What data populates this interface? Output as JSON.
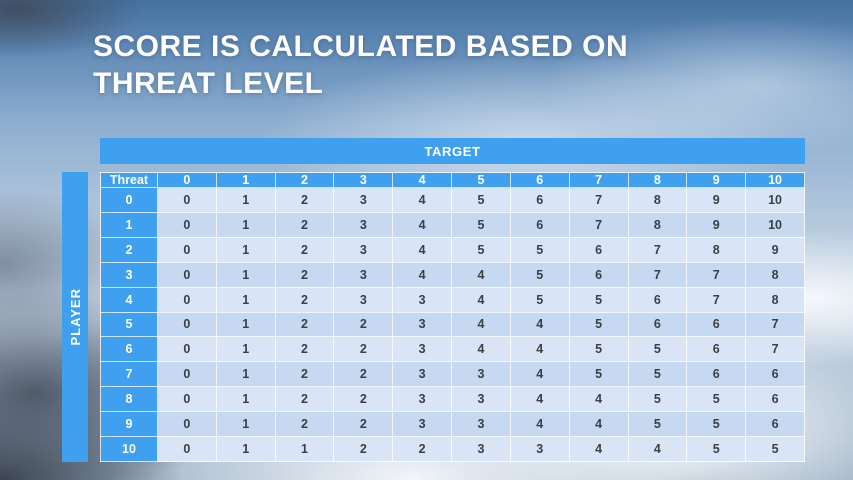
{
  "slide": {
    "title": "SCORE IS CALCULATED BASED ON\nTHREAT LEVEL"
  },
  "table": {
    "target_label": "TARGET",
    "player_label": "PLAYER",
    "corner_label": "Threat",
    "column_headers": [
      "0",
      "1",
      "2",
      "3",
      "4",
      "5",
      "6",
      "7",
      "8",
      "9",
      "10"
    ],
    "rows": [
      {
        "label": "0",
        "values": [
          0,
          1,
          2,
          3,
          4,
          5,
          6,
          7,
          8,
          9,
          10
        ]
      },
      {
        "label": "1",
        "values": [
          0,
          1,
          2,
          3,
          4,
          5,
          6,
          7,
          8,
          9,
          10
        ]
      },
      {
        "label": "2",
        "values": [
          0,
          1,
          2,
          3,
          4,
          5,
          5,
          6,
          7,
          8,
          9
        ]
      },
      {
        "label": "3",
        "values": [
          0,
          1,
          2,
          3,
          4,
          4,
          5,
          6,
          7,
          7,
          8
        ]
      },
      {
        "label": "4",
        "values": [
          0,
          1,
          2,
          3,
          3,
          4,
          5,
          5,
          6,
          7,
          8
        ]
      },
      {
        "label": "5",
        "values": [
          0,
          1,
          2,
          2,
          3,
          4,
          4,
          5,
          6,
          6,
          7
        ]
      },
      {
        "label": "6",
        "values": [
          0,
          1,
          2,
          2,
          3,
          4,
          4,
          5,
          5,
          6,
          7
        ]
      },
      {
        "label": "7",
        "values": [
          0,
          1,
          2,
          2,
          3,
          3,
          4,
          5,
          5,
          6,
          6
        ]
      },
      {
        "label": "8",
        "values": [
          0,
          1,
          2,
          2,
          3,
          3,
          4,
          4,
          5,
          5,
          6
        ]
      },
      {
        "label": "9",
        "values": [
          0,
          1,
          2,
          2,
          3,
          3,
          4,
          4,
          5,
          5,
          6
        ]
      },
      {
        "label": "10",
        "values": [
          0,
          1,
          1,
          2,
          2,
          3,
          3,
          4,
          4,
          5,
          5
        ]
      }
    ]
  },
  "colors": {
    "accent_blue": "#3fa0f0",
    "row_light": "#d9e5f7",
    "row_dark": "#c7d8f1",
    "title_text": "#ffffff",
    "cell_text": "#3b3f46"
  }
}
